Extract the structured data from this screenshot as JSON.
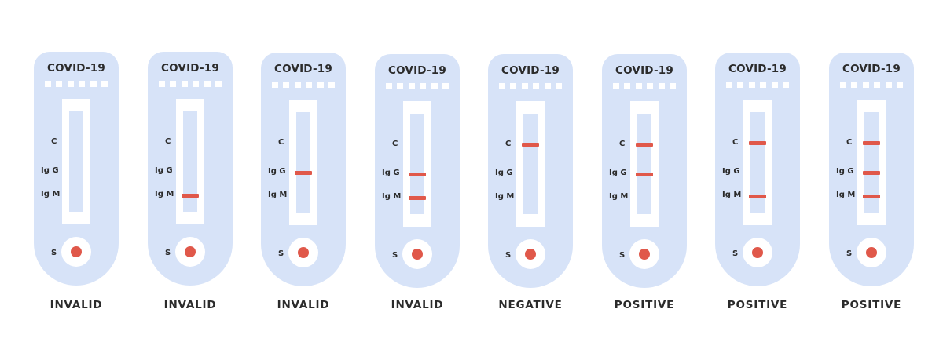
{
  "colors": {
    "card": "#d7e3f8",
    "line": "#e0584a",
    "text": "#2b2b2b"
  },
  "labels": {
    "c": "C",
    "igg": "Ig G",
    "igm": "Ig M",
    "s": "S"
  },
  "kits": [
    {
      "title": "COVID-19",
      "result": "INVALID",
      "lines": {
        "c": false,
        "igg": false,
        "igm": false
      }
    },
    {
      "title": "COVID-19",
      "result": "INVALID",
      "lines": {
        "c": false,
        "igg": false,
        "igm": true
      }
    },
    {
      "title": "COVID-19",
      "result": "INVALID",
      "lines": {
        "c": false,
        "igg": true,
        "igm": false
      }
    },
    {
      "title": "COVID-19",
      "result": "INVALID",
      "lines": {
        "c": false,
        "igg": true,
        "igm": true
      }
    },
    {
      "title": "COVID-19",
      "result": "NEGATIVE",
      "lines": {
        "c": true,
        "igg": false,
        "igm": false
      }
    },
    {
      "title": "COVID-19",
      "result": "POSITIVE",
      "lines": {
        "c": true,
        "igg": true,
        "igm": false
      }
    },
    {
      "title": "COVID-19",
      "result": "POSITIVE",
      "lines": {
        "c": true,
        "igg": false,
        "igm": true
      }
    },
    {
      "title": "COVID-19",
      "result": "POSITIVE",
      "lines": {
        "c": true,
        "igg": true,
        "igm": true
      }
    }
  ]
}
